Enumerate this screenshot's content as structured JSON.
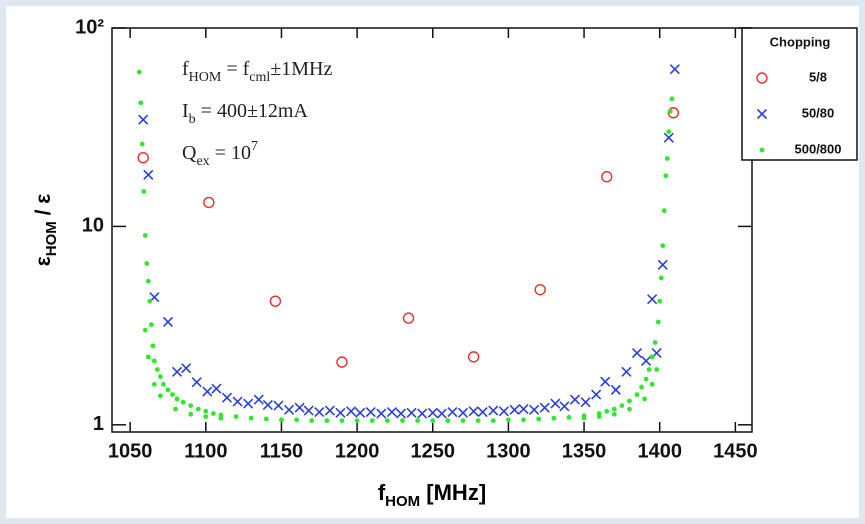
{
  "chart_data": {
    "type": "scatter",
    "log_y": true,
    "xlim": [
      1038,
      1461
    ],
    "ylim": [
      0.92,
      100
    ],
    "xticks": [
      1050,
      1100,
      1150,
      1200,
      1250,
      1300,
      1350,
      1400,
      1450
    ],
    "yticks": [
      1,
      10,
      {
        "value": 100,
        "label": "10²"
      }
    ],
    "x_label": [
      "f",
      "HOM",
      " [MHz]"
    ],
    "y_label": [
      "ε",
      "HOM",
      " / ε"
    ],
    "annotations": [
      [
        {
          "t": "f"
        },
        {
          "t": "HOM",
          "sub": true
        },
        {
          "t": " = f"
        },
        {
          "t": "cml",
          "sub": true
        },
        {
          "t": "±1MHz"
        }
      ],
      [
        {
          "t": "I"
        },
        {
          "t": "b",
          "sub": true
        },
        {
          "t": " = 400±12mA"
        }
      ],
      [
        {
          "t": "Q"
        },
        {
          "t": "ex",
          "sub": true
        },
        {
          "t": " = 10"
        },
        {
          "t": "7",
          "sup": true
        }
      ]
    ],
    "legend_title": "Chopping",
    "legend_position": "outside-right",
    "series": [
      {
        "name": "5/8",
        "marker": "circle",
        "color": "#e8302a",
        "x": [
          1058.6,
          1102,
          1146,
          1190,
          1234,
          1277,
          1321,
          1365,
          1409
        ],
        "values": [
          22.2,
          13.2,
          4.2,
          2.07,
          3.45,
          2.2,
          4.8,
          17.8,
          37.4
        ]
      },
      {
        "name": "50/80",
        "marker": "cross",
        "color": "#2a3fe0",
        "x": [
          1058.6,
          1062,
          1066,
          1075,
          1081,
          1087,
          1094,
          1101,
          1107,
          1114,
          1121,
          1128,
          1135,
          1141,
          1148,
          1155,
          1162,
          1168,
          1175,
          1182,
          1189,
          1196,
          1202,
          1209,
          1216,
          1223,
          1229,
          1236,
          1243,
          1250,
          1256,
          1263,
          1270,
          1277,
          1283,
          1290,
          1297,
          1304,
          1310,
          1317,
          1324,
          1331,
          1337,
          1344,
          1351,
          1358,
          1364,
          1371,
          1378,
          1385,
          1391,
          1395,
          1398,
          1402,
          1406,
          1410
        ],
        "values": [
          34.5,
          18.2,
          4.4,
          3.3,
          1.85,
          1.93,
          1.64,
          1.47,
          1.52,
          1.37,
          1.31,
          1.28,
          1.34,
          1.26,
          1.25,
          1.19,
          1.22,
          1.18,
          1.16,
          1.18,
          1.15,
          1.17,
          1.15,
          1.16,
          1.14,
          1.16,
          1.14,
          1.15,
          1.14,
          1.15,
          1.14,
          1.16,
          1.15,
          1.17,
          1.16,
          1.18,
          1.17,
          1.19,
          1.2,
          1.19,
          1.22,
          1.28,
          1.24,
          1.34,
          1.3,
          1.42,
          1.65,
          1.5,
          1.85,
          2.3,
          2.1,
          4.3,
          2.3,
          6.4,
          28,
          62
        ]
      },
      {
        "name": "500/800",
        "marker": "dot",
        "color": "#2ee82a",
        "x": [
          1056,
          1057,
          1058,
          1059,
          1060,
          1061,
          1062,
          1063,
          1064,
          1065,
          1066,
          1068,
          1070,
          1072,
          1075,
          1078,
          1081,
          1085,
          1090,
          1095,
          1100,
          1105,
          1110,
          1120,
          1130,
          1140,
          1150,
          1160,
          1170,
          1180,
          1190,
          1200,
          1210,
          1220,
          1230,
          1240,
          1250,
          1260,
          1270,
          1280,
          1290,
          1300,
          1310,
          1320,
          1330,
          1340,
          1350,
          1360,
          1365,
          1370,
          1375,
          1380,
          1385,
          1388,
          1391,
          1393,
          1395,
          1397,
          1399,
          1400,
          1401,
          1402,
          1403,
          1404,
          1405,
          1406,
          1407,
          1408,
          1060,
          1062,
          1066,
          1070,
          1080,
          1090,
          1100,
          1110,
          1350,
          1360,
          1370,
          1380,
          1390,
          1395,
          1398
        ],
        "values": [
          60,
          42,
          26,
          15,
          9,
          6.5,
          5.3,
          4.2,
          3.2,
          2.5,
          2.1,
          1.9,
          1.75,
          1.6,
          1.5,
          1.42,
          1.35,
          1.3,
          1.25,
          1.2,
          1.17,
          1.14,
          1.12,
          1.1,
          1.08,
          1.07,
          1.06,
          1.06,
          1.05,
          1.05,
          1.05,
          1.05,
          1.05,
          1.05,
          1.05,
          1.05,
          1.05,
          1.05,
          1.05,
          1.05,
          1.05,
          1.06,
          1.06,
          1.07,
          1.08,
          1.09,
          1.11,
          1.14,
          1.17,
          1.2,
          1.25,
          1.32,
          1.42,
          1.55,
          1.7,
          1.9,
          2.2,
          2.6,
          3.3,
          4.2,
          5.5,
          8,
          12,
          18,
          22,
          30,
          38,
          44,
          3.0,
          2.2,
          1.6,
          1.4,
          1.2,
          1.13,
          1.1,
          1.08,
          1.08,
          1.1,
          1.13,
          1.2,
          1.35,
          1.6,
          1.9
        ]
      }
    ]
  }
}
